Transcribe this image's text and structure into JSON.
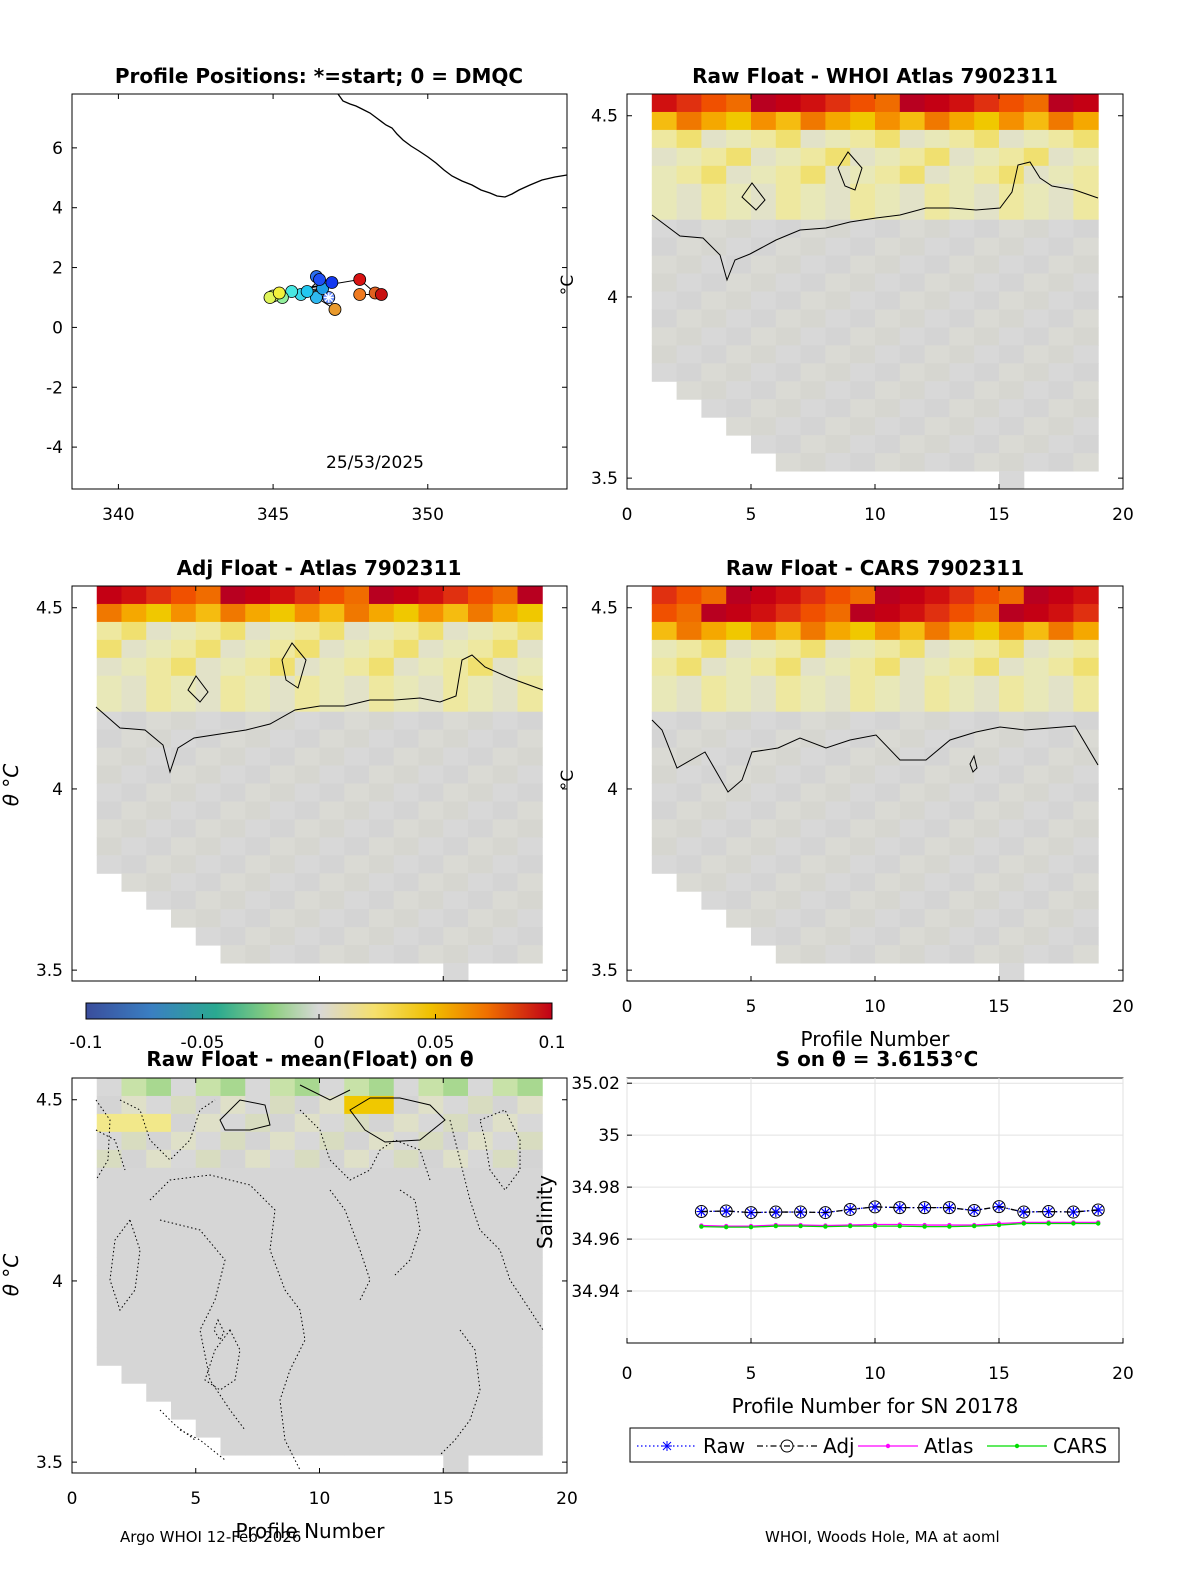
{
  "chart_data": [
    {
      "type": "scatter",
      "title": "Profile Positions: *=start; 0 = DMQC",
      "xlim": [
        338.5,
        354.5
      ],
      "ylim": [
        -5.4,
        7.8
      ],
      "xticks": [
        340,
        345,
        350
      ],
      "yticks": [
        6,
        4,
        2,
        0,
        -2,
        -4
      ],
      "date_label": "25/53/2025",
      "points": [
        {
          "lon": 346.8,
          "lat": 1.0,
          "color": "#6a8fff"
        },
        {
          "lon": 347.0,
          "lat": 0.6,
          "color": "#e99a2c"
        },
        {
          "lon": 346.4,
          "lat": 1.0,
          "color": "#2fb8f0"
        },
        {
          "lon": 345.9,
          "lat": 1.1,
          "color": "#39d8ea"
        },
        {
          "lon": 346.6,
          "lat": 1.3,
          "color": "#1e9de6"
        },
        {
          "lon": 345.6,
          "lat": 1.2,
          "color": "#48e7e2"
        },
        {
          "lon": 346.9,
          "lat": 1.5,
          "color": "#1238f0"
        },
        {
          "lon": 346.4,
          "lat": 1.7,
          "color": "#2c6ff0"
        },
        {
          "lon": 346.5,
          "lat": 1.6,
          "color": "#1e4ef5"
        },
        {
          "lon": 346.1,
          "lat": 1.2,
          "color": "#22c7f0"
        },
        {
          "lon": 345.3,
          "lat": 1.0,
          "color": "#92ef9c"
        },
        {
          "lon": 345.0,
          "lat": 1.05,
          "color": "#c7f57a"
        },
        {
          "lon": 344.9,
          "lat": 1.0,
          "color": "#e0f55a"
        },
        {
          "lon": 345.2,
          "lat": 1.15,
          "color": "#f2f03c"
        },
        {
          "lon": 347.8,
          "lat": 1.6,
          "color": "#d81212"
        },
        {
          "lon": 348.3,
          "lat": 1.15,
          "color": "#e06020"
        },
        {
          "lon": 348.5,
          "lat": 1.1,
          "color": "#c81010"
        },
        {
          "lon": 347.8,
          "lat": 1.1,
          "color": "#ef7a20"
        }
      ]
    },
    {
      "type": "heatmap",
      "title": "Raw Float - WHOI Atlas  7902311",
      "xlim": [
        0,
        20
      ],
      "ylim": [
        3.47,
        4.56
      ],
      "xticks": [
        0,
        5,
        10,
        15,
        20
      ],
      "yticks": [
        3.5,
        4,
        4.5
      ],
      "ylabel_partial": "°C"
    },
    {
      "type": "heatmap",
      "title": "Adj Float - Atlas  7902311",
      "xlim": [
        0,
        20
      ],
      "ylim": [
        3.47,
        4.56
      ],
      "yticks": [
        3.5,
        4,
        4.5
      ],
      "ylabel": "θ °C"
    },
    {
      "type": "heatmap",
      "title": "Raw Float - CARS  7902311",
      "xlim": [
        0,
        20
      ],
      "ylim": [
        3.47,
        4.56
      ],
      "xticks": [
        0,
        5,
        10,
        15,
        20
      ],
      "yticks": [
        3.5,
        4,
        4.5
      ],
      "xlabel": "Profile Number"
    },
    {
      "type": "heatmap",
      "title": "Raw Float - mean(Float) on θ",
      "xlim": [
        0,
        20
      ],
      "ylim": [
        3.47,
        4.56
      ],
      "xticks": [
        0,
        5,
        10,
        15,
        20
      ],
      "yticks": [
        3.5,
        4,
        4.5
      ],
      "xlabel": "Profile Number",
      "ylabel": "θ °C"
    },
    {
      "type": "line",
      "title": "S on θ = 3.6153°C",
      "xlabel": "Profile Number for SN 20178",
      "ylabel": "Salinity",
      "xlim": [
        0,
        20
      ],
      "ylim": [
        34.92,
        35.022
      ],
      "xticks": [
        0,
        5,
        10,
        15,
        20
      ],
      "ytick_labels": [
        "35.02",
        "35",
        "34.98",
        "34.96",
        "34.94"
      ],
      "yticks": [
        35.02,
        35.0,
        34.98,
        34.96,
        34.94
      ],
      "x": [
        3,
        4,
        5,
        6,
        7,
        8,
        9,
        10,
        11,
        12,
        13,
        14,
        15,
        16,
        17,
        18,
        19
      ],
      "series": [
        {
          "name": "Raw",
          "color": "#0000ff",
          "style": "dotted",
          "marker": "star",
          "values": [
            34.9706,
            34.9708,
            34.9702,
            34.9704,
            34.9704,
            34.9702,
            34.9714,
            34.9724,
            34.9721,
            34.9721,
            34.9721,
            34.971,
            34.9725,
            34.9704,
            34.9706,
            34.9704,
            34.9712
          ]
        },
        {
          "name": "Adj",
          "color": "#000000",
          "style": "dashdot",
          "marker": "circle",
          "values": [
            34.9706,
            34.9708,
            34.9702,
            34.9704,
            34.9704,
            34.9702,
            34.9714,
            34.9724,
            34.9721,
            34.9721,
            34.9721,
            34.971,
            34.9725,
            34.9704,
            34.9706,
            34.9704,
            34.9712
          ]
        },
        {
          "name": "Atlas",
          "color": "#ff00ff",
          "style": "solid",
          "marker": "dot",
          "values": [
            34.9652,
            34.965,
            34.965,
            34.9654,
            34.9654,
            34.9652,
            34.9654,
            34.9656,
            34.9656,
            34.9654,
            34.9654,
            34.9654,
            34.966,
            34.9664,
            34.9664,
            34.9664,
            34.9664
          ]
        },
        {
          "name": "CARS",
          "color": "#00dd00",
          "style": "solid",
          "marker": "dot",
          "values": [
            34.9648,
            34.9646,
            34.9646,
            34.965,
            34.965,
            34.9648,
            34.965,
            34.965,
            34.965,
            34.9648,
            34.9648,
            34.965,
            34.9654,
            34.966,
            34.966,
            34.966,
            34.966
          ]
        }
      ]
    }
  ],
  "colorbar": {
    "tick_labels": [
      "-0.1",
      "-0.05",
      "0",
      "0.05",
      "0.1"
    ],
    "ticks": [
      -0.1,
      -0.05,
      0,
      0.05,
      0.1
    ],
    "range": [
      -0.1,
      0.1
    ]
  },
  "footer": {
    "left": "Argo WHOI 12-Feb-2026",
    "right": "WHOI, Woods Hole, MA at aoml"
  }
}
